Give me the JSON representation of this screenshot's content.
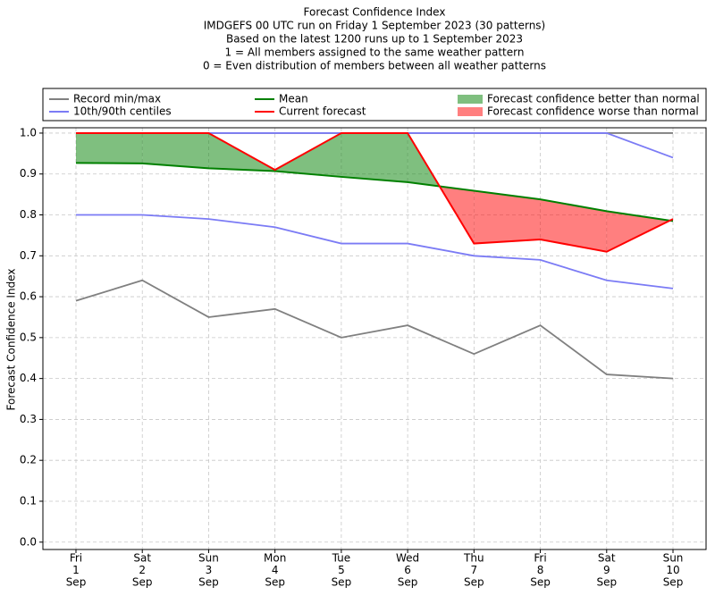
{
  "chart_data": {
    "type": "line",
    "title": "Forecast Confidence Index",
    "subtitle": [
      "IMDGEFS 00 UTC run on Friday 1 September 2023 (30 patterns)",
      "Based on the latest 1200 runs up to 1 September 2023",
      "1 = All members assigned to the same weather pattern",
      "0 = Even distribution of members between all weather patterns"
    ],
    "y_label": "Forecast Confidence Index",
    "categories": [
      [
        "Fri",
        "1",
        "Sep"
      ],
      [
        "Sat",
        "2",
        "Sep"
      ],
      [
        "Sun",
        "3",
        "Sep"
      ],
      [
        "Mon",
        "4",
        "Sep"
      ],
      [
        "Tue",
        "5",
        "Sep"
      ],
      [
        "Wed",
        "6",
        "Sep"
      ],
      [
        "Thu",
        "7",
        "Sep"
      ],
      [
        "Fri",
        "8",
        "Sep"
      ],
      [
        "Sat",
        "9",
        "Sep"
      ],
      [
        "Sun",
        "10",
        "Sep"
      ]
    ],
    "series": [
      {
        "name": "Record min/max",
        "color": "#808080",
        "lower": [
          0.59,
          0.64,
          0.55,
          0.57,
          0.5,
          0.53,
          0.46,
          0.53,
          0.41,
          0.4
        ],
        "upper": [
          1.0,
          1.0,
          1.0,
          1.0,
          1.0,
          1.0,
          1.0,
          1.0,
          1.0,
          1.0
        ]
      },
      {
        "name": "10th/90th centiles",
        "color": "#7b7bf5",
        "lower": [
          0.8,
          0.8,
          0.79,
          0.77,
          0.73,
          0.73,
          0.7,
          0.69,
          0.64,
          0.62
        ],
        "upper": [
          1.0,
          1.0,
          1.0,
          1.0,
          1.0,
          1.0,
          1.0,
          1.0,
          1.0,
          0.94
        ]
      },
      {
        "name": "Mean",
        "color": "#008000",
        "values": [
          0.927,
          0.926,
          0.914,
          0.907,
          0.893,
          0.88,
          0.859,
          0.838,
          0.809,
          0.785
        ]
      },
      {
        "name": "Current forecast",
        "color": "#ff0000",
        "values": [
          1.0,
          1.0,
          1.0,
          0.91,
          1.0,
          1.0,
          0.73,
          0.74,
          0.71,
          0.79
        ]
      }
    ],
    "fills": [
      {
        "name": "Forecast confidence better than normal",
        "color": "#008000"
      },
      {
        "name": "Forecast confidence worse than normal",
        "color": "#ff0000"
      }
    ],
    "ylim": [
      -0.018,
      1.013
    ],
    "yticks": [
      {
        "value": 0,
        "label": "0.0"
      },
      0.1,
      0.2,
      0.3,
      0.4,
      0.5,
      0.6,
      0.7,
      0.8,
      0.9,
      {
        "value": 1,
        "label": "1.0"
      }
    ],
    "grid": true
  }
}
